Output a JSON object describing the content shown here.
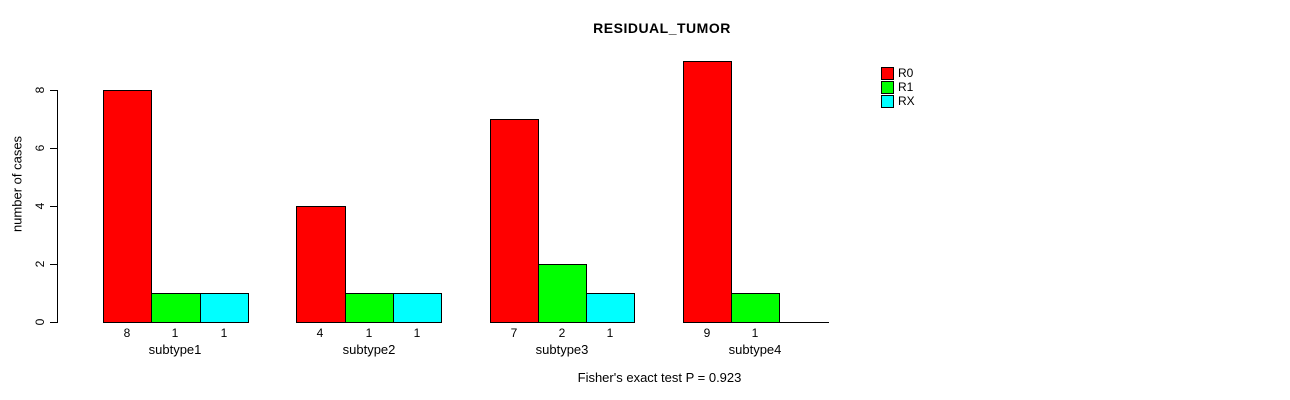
{
  "chart_data": {
    "type": "bar",
    "title": "RESIDUAL_TUMOR",
    "xlabel": "",
    "ylabel": "number of cases",
    "categories": [
      "subtype1",
      "subtype2",
      "subtype3",
      "subtype4"
    ],
    "series": [
      {
        "name": "R0",
        "color": "#FF0000",
        "values": [
          8,
          4,
          7,
          9
        ]
      },
      {
        "name": "R1",
        "color": "#00FF00",
        "values": [
          1,
          1,
          2,
          1
        ]
      },
      {
        "name": "RX",
        "color": "#00FFFF",
        "values": [
          1,
          1,
          1,
          0
        ]
      }
    ],
    "bar_value_labels": [
      [
        "8",
        "4",
        "7",
        "9"
      ],
      [
        "1",
        "1",
        "2",
        "1"
      ],
      [
        "1",
        "1",
        "1",
        ""
      ]
    ],
    "ylim": [
      0,
      9
    ],
    "yticks": [
      0,
      2,
      4,
      6,
      8
    ],
    "grid": false,
    "legend_position": "right",
    "annotation": "Fisher's exact test P = 0.923"
  },
  "colors": {
    "background": "#FFFFFF",
    "axis": "#000000",
    "text": "#000000"
  }
}
